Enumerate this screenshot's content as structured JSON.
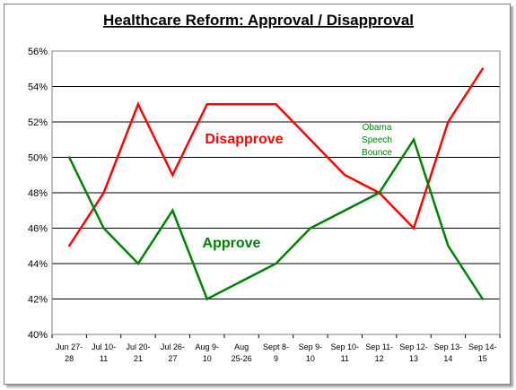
{
  "chart_data": {
    "type": "line",
    "title": "Healthcare Reform: Approval / Disapproval",
    "categories": [
      [
        "Jun 27-",
        "28"
      ],
      [
        "Jul 10-",
        "11"
      ],
      [
        "Jul 20-",
        "21"
      ],
      [
        "Jul 26-",
        "27"
      ],
      [
        "Aug 9-",
        "10"
      ],
      [
        "Aug",
        "25-26"
      ],
      [
        "Sept 8-",
        "9"
      ],
      [
        "Sep 9-",
        "10"
      ],
      [
        "Sep 10-",
        "11"
      ],
      [
        "Sep 11-",
        "12"
      ],
      [
        "Sep 12-",
        "13"
      ],
      [
        "Sep 13-",
        "14"
      ],
      [
        "Sep 14-",
        "15"
      ]
    ],
    "series": [
      {
        "name": "Disapprove",
        "color": "#ff0000",
        "values": [
          45,
          48,
          53,
          49,
          53,
          53,
          53,
          51,
          49,
          48,
          46,
          52,
          55
        ]
      },
      {
        "name": "Approve",
        "color": "#008000",
        "values": [
          50,
          46,
          44,
          47,
          42,
          43,
          44,
          46,
          47,
          48,
          51,
          45,
          42
        ]
      }
    ],
    "annotation": [
      "Obama",
      "Speech",
      "Bounce"
    ],
    "ylim": [
      40,
      56
    ],
    "yticks": [
      40,
      42,
      44,
      46,
      48,
      50,
      52,
      54,
      56
    ],
    "ytick_format": "%",
    "grid": true,
    "legend": "inline labels"
  }
}
